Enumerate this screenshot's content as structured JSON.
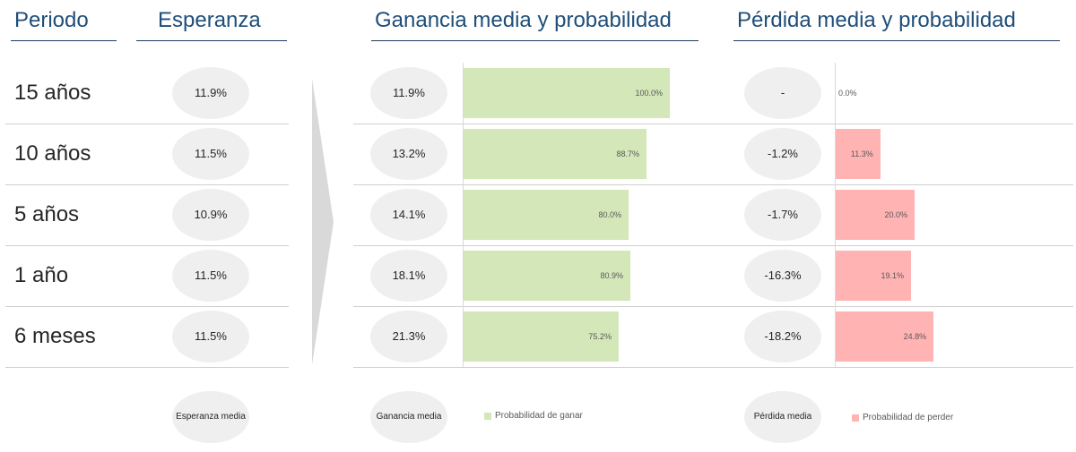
{
  "headers": {
    "period": "Periodo",
    "expectation": "Esperanza",
    "gain": "Ganancia media y probabilidad",
    "loss": "Pérdida media y probabilidad"
  },
  "rows": [
    {
      "period": "15 años",
      "expectation": "11.9%",
      "gain_mean": "11.9%",
      "win_prob_label": "100.0%",
      "loss_mean": "-",
      "lose_prob_label": "0.0%"
    },
    {
      "period": "10 años",
      "expectation": "11.5%",
      "gain_mean": "13.2%",
      "win_prob_label": "88.7%",
      "loss_mean": "-1.2%",
      "lose_prob_label": "11.3%"
    },
    {
      "period": "5 años",
      "expectation": "10.9%",
      "gain_mean": "14.1%",
      "win_prob_label": "80.0%",
      "loss_mean": "-1.7%",
      "lose_prob_label": "20.0%"
    },
    {
      "period": "1 año",
      "expectation": "11.5%",
      "gain_mean": "18.1%",
      "win_prob_label": "80.9%",
      "loss_mean": "-16.3%",
      "lose_prob_label": "19.1%"
    },
    {
      "period": "6 meses",
      "expectation": "11.5%",
      "gain_mean": "21.3%",
      "win_prob_label": "75.2%",
      "loss_mean": "-18.2%",
      "lose_prob_label": "24.8%"
    }
  ],
  "legend": {
    "expectation": "Esperanza media",
    "gain": "Ganancia media",
    "win": "Probabilidad de ganar",
    "loss": "Pérdida media",
    "lose": "Probabilidad de perder"
  },
  "colors": {
    "win": "#d3e7b8",
    "lose": "#ffb3b3",
    "ellipse": "#efefef",
    "header": "#1f4e79"
  },
  "chart_data": [
    {
      "type": "bar",
      "categories": [
        "15 años",
        "10 años",
        "5 años",
        "1 año",
        "6 meses"
      ],
      "series": [
        {
          "name": "Probabilidad de ganar",
          "values": [
            100.0,
            88.7,
            80.0,
            80.9,
            75.2
          ]
        }
      ],
      "title": "Ganancia media y probabilidad",
      "xlim": [
        0,
        100
      ]
    },
    {
      "type": "bar",
      "categories": [
        "15 años",
        "10 años",
        "5 años",
        "1 año",
        "6 meses"
      ],
      "series": [
        {
          "name": "Probabilidad de perder",
          "values": [
            0.0,
            11.3,
            20.0,
            19.1,
            24.8
          ]
        }
      ],
      "title": "Pérdida media y probabilidad",
      "xlim": [
        0,
        100
      ]
    }
  ]
}
